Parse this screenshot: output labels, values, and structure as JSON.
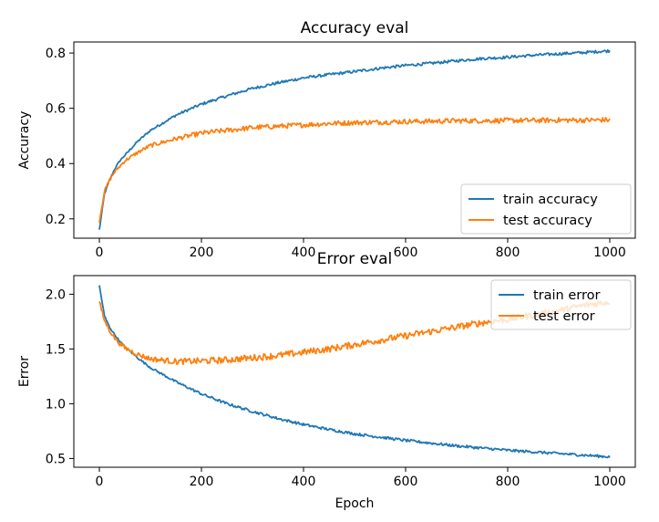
{
  "chart_data": [
    {
      "type": "line",
      "title": "Accuracy eval",
      "xlabel": "",
      "ylabel": "Accuracy",
      "xlim": [
        -50,
        1050
      ],
      "ylim": [
        0.13,
        0.84
      ],
      "xticks": [
        0,
        200,
        400,
        600,
        800,
        1000
      ],
      "xtick_labels": [
        "0",
        "200",
        "400",
        "600",
        "800",
        "1000"
      ],
      "yticks": [
        0.2,
        0.4,
        0.6,
        0.8
      ],
      "ytick_labels": [
        "0.2",
        "0.4",
        "0.6",
        "0.8"
      ],
      "grid": false,
      "legend": "lower right",
      "series": [
        {
          "name": "train accuracy",
          "color": "#1f77b4",
          "x": [
            0,
            10,
            20,
            30,
            40,
            50,
            75,
            100,
            150,
            200,
            250,
            300,
            350,
            400,
            450,
            500,
            550,
            600,
            650,
            700,
            750,
            800,
            850,
            900,
            950,
            1000
          ],
          "y": [
            0.16,
            0.29,
            0.34,
            0.38,
            0.41,
            0.43,
            0.48,
            0.52,
            0.575,
            0.615,
            0.645,
            0.672,
            0.692,
            0.71,
            0.722,
            0.733,
            0.745,
            0.755,
            0.763,
            0.772,
            0.78,
            0.785,
            0.792,
            0.797,
            0.802,
            0.808
          ]
        },
        {
          "name": "test accuracy",
          "color": "#ff7f0e",
          "x": [
            0,
            10,
            20,
            30,
            40,
            50,
            75,
            100,
            150,
            200,
            250,
            300,
            350,
            400,
            450,
            500,
            550,
            600,
            650,
            700,
            750,
            800,
            850,
            900,
            950,
            1000
          ],
          "y": [
            0.19,
            0.3,
            0.34,
            0.37,
            0.39,
            0.41,
            0.44,
            0.465,
            0.49,
            0.51,
            0.52,
            0.53,
            0.535,
            0.54,
            0.545,
            0.548,
            0.55,
            0.552,
            0.553,
            0.555,
            0.555,
            0.556,
            0.556,
            0.557,
            0.557,
            0.558
          ]
        }
      ]
    },
    {
      "type": "line",
      "title": "Error eval",
      "xlabel": "Epoch",
      "ylabel": "Error",
      "xlim": [
        -50,
        1050
      ],
      "ylim": [
        0.42,
        2.17
      ],
      "xticks": [
        0,
        200,
        400,
        600,
        800,
        1000
      ],
      "xtick_labels": [
        "0",
        "200",
        "400",
        "600",
        "800",
        "1000"
      ],
      "yticks": [
        0.5,
        1.0,
        1.5,
        2.0
      ],
      "ytick_labels": [
        "0.5",
        "1.0",
        "1.5",
        "2.0"
      ],
      "grid": false,
      "legend": "upper right",
      "series": [
        {
          "name": "train error",
          "color": "#1f77b4",
          "x": [
            0,
            10,
            20,
            30,
            40,
            50,
            75,
            100,
            150,
            200,
            250,
            300,
            350,
            400,
            450,
            500,
            550,
            600,
            650,
            700,
            750,
            800,
            850,
            900,
            950,
            1000
          ],
          "y": [
            2.08,
            1.8,
            1.7,
            1.63,
            1.57,
            1.52,
            1.42,
            1.33,
            1.2,
            1.09,
            1.0,
            0.93,
            0.865,
            0.81,
            0.765,
            0.725,
            0.695,
            0.665,
            0.64,
            0.615,
            0.595,
            0.575,
            0.56,
            0.545,
            0.53,
            0.515
          ]
        },
        {
          "name": "test error",
          "color": "#ff7f0e",
          "x": [
            0,
            10,
            20,
            30,
            40,
            50,
            75,
            100,
            150,
            200,
            250,
            300,
            350,
            400,
            450,
            500,
            550,
            600,
            650,
            700,
            750,
            800,
            850,
            900,
            950,
            1000
          ],
          "y": [
            1.93,
            1.76,
            1.67,
            1.6,
            1.55,
            1.51,
            1.45,
            1.41,
            1.385,
            1.39,
            1.4,
            1.42,
            1.44,
            1.47,
            1.5,
            1.54,
            1.58,
            1.62,
            1.66,
            1.7,
            1.74,
            1.77,
            1.81,
            1.85,
            1.9,
            1.93
          ]
        }
      ]
    }
  ]
}
